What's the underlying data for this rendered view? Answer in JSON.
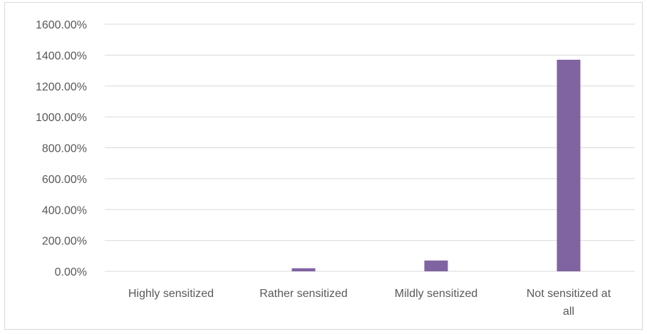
{
  "chart_data": {
    "type": "bar",
    "categories": [
      [
        "Highly sensitized"
      ],
      [
        "Rather sensitized"
      ],
      [
        "Mildly sensitized"
      ],
      [
        "Not sensitized at",
        "all"
      ]
    ],
    "values": [
      0,
      20,
      70,
      1370
    ],
    "ylim": [
      0,
      1600
    ],
    "yticks": [
      0,
      200,
      400,
      600,
      800,
      1000,
      1200,
      1400,
      1600
    ],
    "ytick_labels": [
      "0.00%",
      "200.00%",
      "400.00%",
      "600.00%",
      "800.00%",
      "1000.00%",
      "1200.00%",
      "1400.00%",
      "1600.00%"
    ],
    "grid": true,
    "bar_color": "#8064a2",
    "grid_color": "#d9d9d9"
  }
}
